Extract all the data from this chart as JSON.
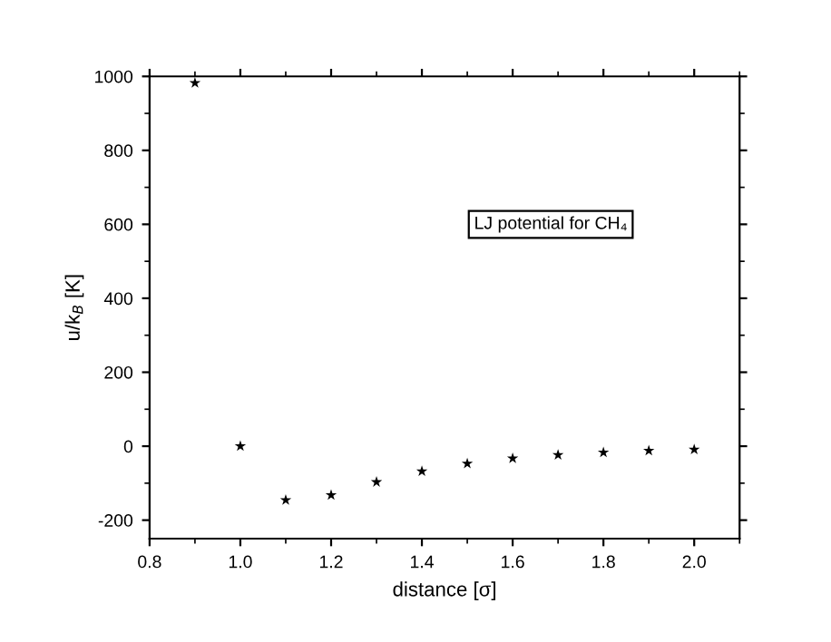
{
  "chart_data": {
    "type": "scatter",
    "xlabel": "distance [σ]",
    "ylabel": "u/k$_{B}$ [K]",
    "x": [
      0.9,
      1.0,
      1.1,
      1.2,
      1.3,
      1.4,
      1.5,
      1.6,
      1.7,
      1.8,
      1.9,
      2.0
    ],
    "series": [
      {
        "color": "#000000",
        "values": [
          982,
          0,
          -146,
          -132,
          -97,
          -68,
          -47,
          -33,
          -24,
          -17,
          -12,
          -9
        ]
      }
    ],
    "marker": "star",
    "xlim": [
      0.8,
      2.1
    ],
    "xticks": [
      {
        "value": 0.8,
        "label": "0.8"
      },
      {
        "value": 1.0,
        "label": "1.0"
      },
      {
        "value": 1.2,
        "label": "1.2"
      },
      {
        "value": 1.4,
        "label": "1.4"
      },
      {
        "value": 1.6,
        "label": "1.6"
      },
      {
        "value": 1.8,
        "label": "1.8"
      },
      {
        "value": 2.0,
        "label": "2.0"
      }
    ],
    "ylim": [
      -250,
      1000
    ],
    "yticks": [
      -200,
      0,
      200,
      400,
      600,
      800,
      1000
    ],
    "grid": false,
    "legend": false,
    "annotations": [
      "LJ potential for CH₄"
    ]
  }
}
